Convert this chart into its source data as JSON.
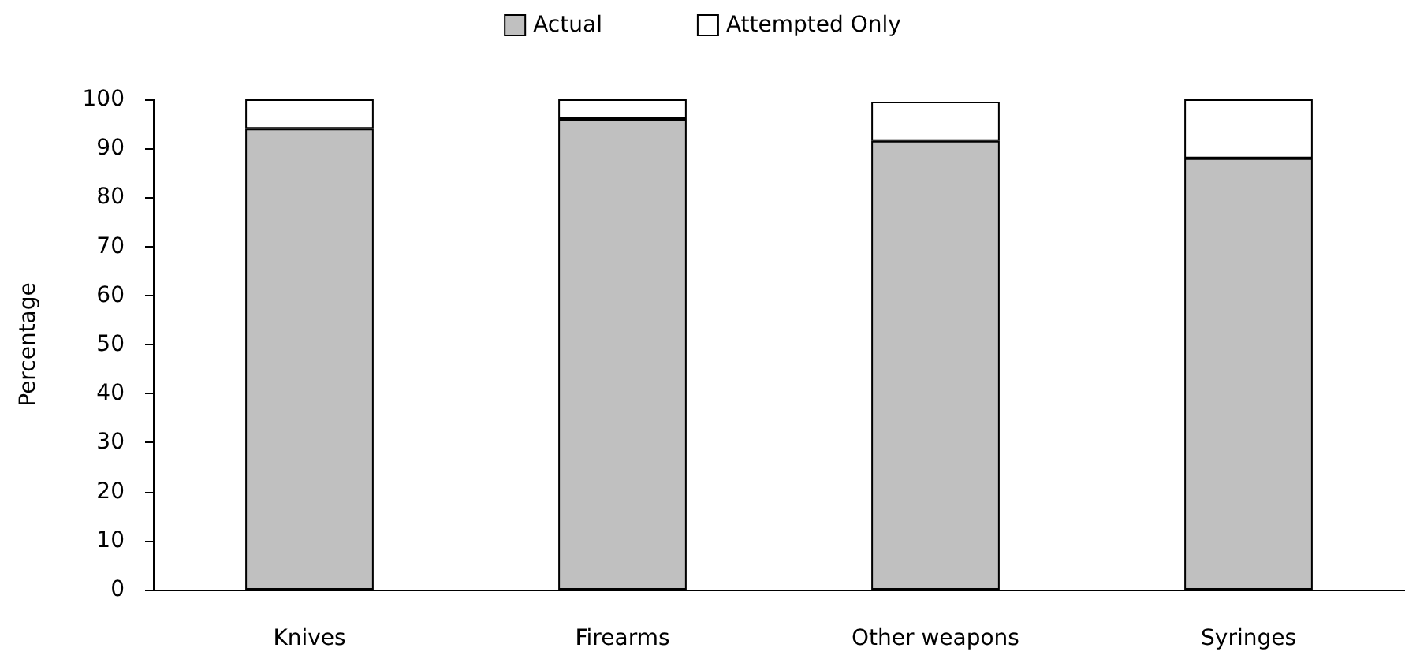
{
  "chart_data": {
    "type": "bar",
    "ylabel": "Percentage",
    "categories": [
      "Knives",
      "Firearms",
      "Other weapons",
      "Syringes"
    ],
    "stacked": true,
    "series": [
      {
        "name": "Actual",
        "color": "#c0c0c0",
        "values": [
          94,
          96,
          91.5,
          88
        ]
      },
      {
        "name": "Attempted Only",
        "color": "#ffffff",
        "values": [
          6,
          4,
          8,
          12
        ]
      }
    ],
    "ylim": [
      0,
      100
    ],
    "yticks": [
      0,
      10,
      20,
      30,
      40,
      50,
      60,
      70,
      80,
      90,
      100
    ],
    "grid": false,
    "legend": "top"
  }
}
